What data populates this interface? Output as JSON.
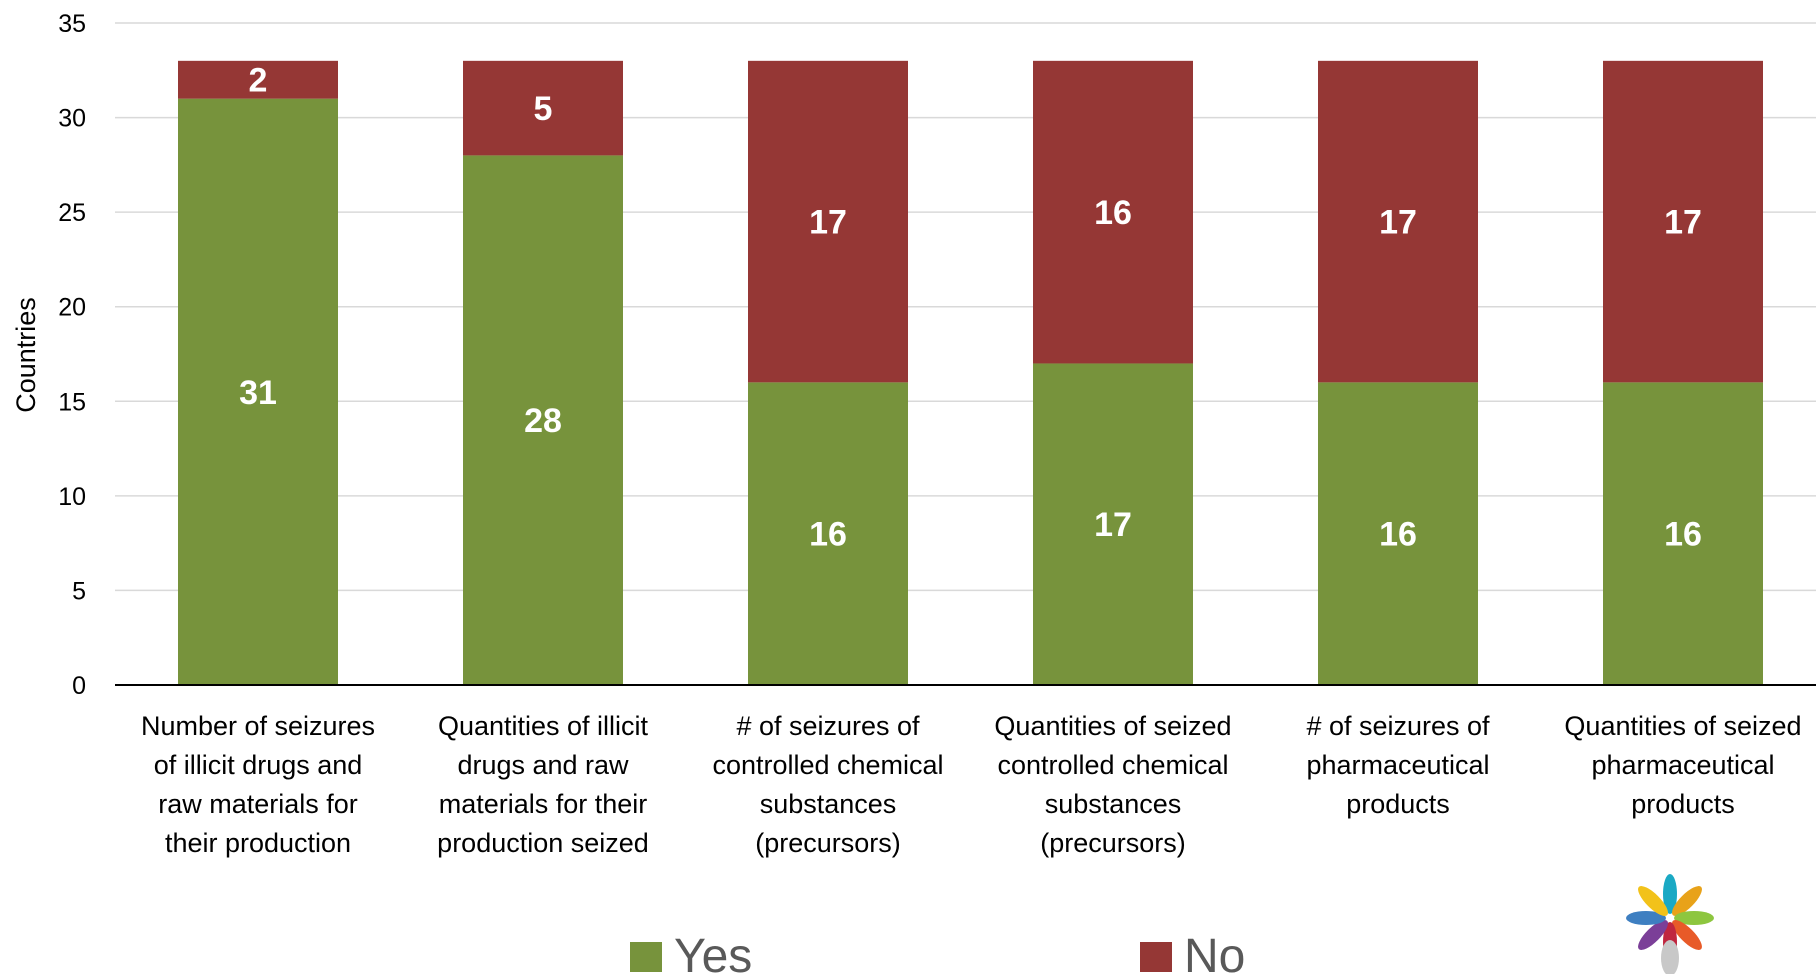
{
  "chart_data": {
    "type": "bar",
    "stacked": true,
    "ylabel": "Countries",
    "ylim": [
      0,
      35
    ],
    "yticks": [
      "0",
      "5",
      "10",
      "15",
      "20",
      "25",
      "30",
      "35"
    ],
    "grid": true,
    "legend_position": "bottom",
    "categories": [
      [
        "Number of seizures",
        "of illicit drugs and",
        "raw materials for",
        "their production"
      ],
      [
        "Quantities of illicit",
        "drugs and raw",
        "materials for their",
        "production seized"
      ],
      [
        "# of seizures of",
        "controlled chemical",
        "substances",
        "(precursors)"
      ],
      [
        "Quantities of seized",
        "controlled chemical",
        "substances",
        "(precursors)"
      ],
      [
        "# of seizures of",
        "pharmaceutical",
        "products"
      ],
      [
        "Quantities of seized",
        "pharmaceutical",
        "products"
      ]
    ],
    "series": [
      {
        "name": "Yes",
        "color": "#77933c",
        "values": [
          31,
          28,
          16,
          17,
          16,
          16
        ]
      },
      {
        "name": "No",
        "color": "#953735",
        "values": [
          2,
          5,
          17,
          16,
          17,
          17
        ]
      }
    ]
  },
  "logo": {
    "icon": "hands-logo-icon"
  }
}
